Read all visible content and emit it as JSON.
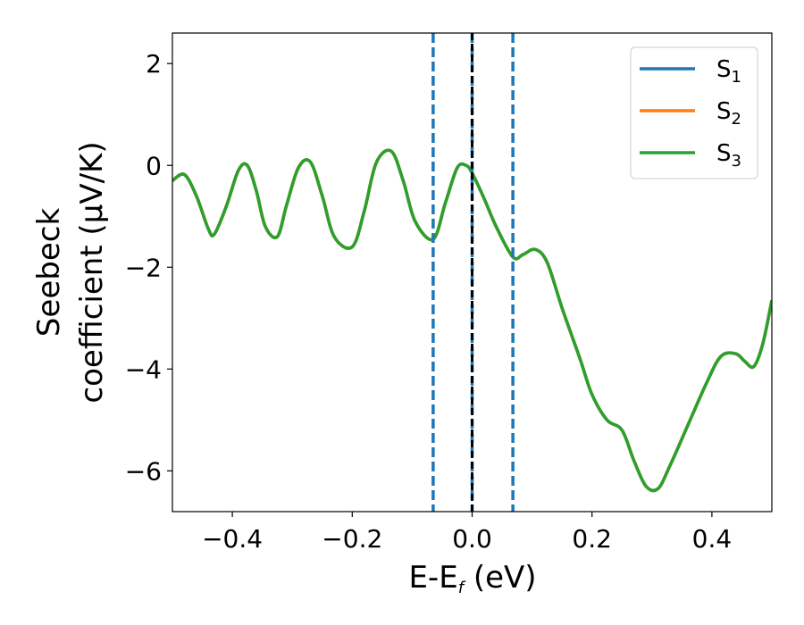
{
  "chart_data": {
    "type": "line",
    "xlabel": "E-E_f (eV)",
    "xlabel_main": "E-E",
    "xlabel_sub": "f",
    "xlabel_unit": " (eV)",
    "ylabel_line1": "Seebeck",
    "ylabel_line2": "coefficient  (μV/K)",
    "xlim": [
      -0.5,
      0.5
    ],
    "ylim": [
      -6.8,
      2.6
    ],
    "xticks": [
      -0.4,
      -0.2,
      0.0,
      0.2,
      0.4
    ],
    "xtick_labels": [
      "−0.4",
      "−0.2",
      "0.0",
      "0.2",
      "0.4"
    ],
    "yticks": [
      2,
      0,
      -2,
      -4,
      -6
    ],
    "ytick_labels": [
      "2",
      "0",
      "−2",
      "−4",
      "−6"
    ],
    "grid": false,
    "legend_position": "top-right",
    "vlines": [
      {
        "x": -0.065,
        "style": "dashed",
        "color": "#1f77b4"
      },
      {
        "x": 0.0,
        "style": "dashed",
        "color": "#1f77b4"
      },
      {
        "x": 0.0,
        "style": "solid",
        "color": "#000000"
      },
      {
        "x": 0.068,
        "style": "dashed",
        "color": "#1f77b4"
      }
    ],
    "x": [
      -0.5,
      -0.48,
      -0.46,
      -0.44,
      -0.43,
      -0.41,
      -0.39,
      -0.375,
      -0.36,
      -0.345,
      -0.325,
      -0.31,
      -0.29,
      -0.27,
      -0.25,
      -0.23,
      -0.2,
      -0.18,
      -0.16,
      -0.135,
      -0.115,
      -0.095,
      -0.065,
      -0.045,
      -0.025,
      -0.01,
      0.0,
      0.02,
      0.04,
      0.068,
      0.085,
      0.105,
      0.125,
      0.15,
      0.18,
      0.2,
      0.225,
      0.25,
      0.27,
      0.29,
      0.31,
      0.33,
      0.36,
      0.39,
      0.415,
      0.44,
      0.455,
      0.47,
      0.485,
      0.5
    ],
    "series": [
      {
        "name": "S_1",
        "label": "S",
        "sub": "1",
        "color": "#1f77b4",
        "values": [
          -0.3,
          -0.18,
          -0.6,
          -1.25,
          -1.35,
          -0.8,
          -0.1,
          0.0,
          -0.5,
          -1.2,
          -1.4,
          -0.8,
          -0.05,
          0.07,
          -0.6,
          -1.4,
          -1.6,
          -0.9,
          0.05,
          0.28,
          -0.3,
          -1.1,
          -1.45,
          -0.75,
          -0.05,
          0.0,
          -0.15,
          -0.65,
          -1.2,
          -1.8,
          -1.75,
          -1.65,
          -1.9,
          -2.8,
          -3.8,
          -4.5,
          -5.0,
          -5.2,
          -5.8,
          -6.3,
          -6.35,
          -5.9,
          -5.1,
          -4.3,
          -3.75,
          -3.7,
          -3.85,
          -3.95,
          -3.5,
          -2.65
        ]
      },
      {
        "name": "S_2",
        "label": "S",
        "sub": "2",
        "color": "#ff7f0e",
        "values": [
          -0.3,
          -0.18,
          -0.6,
          -1.25,
          -1.35,
          -0.8,
          -0.1,
          0.0,
          -0.5,
          -1.2,
          -1.4,
          -0.8,
          -0.05,
          0.07,
          -0.6,
          -1.4,
          -1.6,
          -0.9,
          0.05,
          0.28,
          -0.3,
          -1.1,
          -1.45,
          -0.75,
          -0.05,
          0.0,
          -0.15,
          -0.65,
          -1.2,
          -1.8,
          -1.75,
          -1.65,
          -1.9,
          -2.8,
          -3.8,
          -4.5,
          -5.0,
          -5.2,
          -5.8,
          -6.3,
          -6.35,
          -5.9,
          -5.1,
          -4.3,
          -3.75,
          -3.7,
          -3.85,
          -3.95,
          -3.5,
          -2.65
        ]
      },
      {
        "name": "S_3",
        "label": "S",
        "sub": "3",
        "color": "#2ca02c",
        "values": [
          -0.3,
          -0.18,
          -0.6,
          -1.25,
          -1.35,
          -0.8,
          -0.1,
          0.0,
          -0.5,
          -1.2,
          -1.4,
          -0.8,
          -0.05,
          0.07,
          -0.6,
          -1.4,
          -1.6,
          -0.9,
          0.05,
          0.28,
          -0.3,
          -1.1,
          -1.45,
          -0.75,
          -0.05,
          0.0,
          -0.15,
          -0.65,
          -1.2,
          -1.8,
          -1.75,
          -1.65,
          -1.9,
          -2.8,
          -3.8,
          -4.5,
          -5.0,
          -5.2,
          -5.8,
          -6.3,
          -6.35,
          -5.9,
          -5.1,
          -4.3,
          -3.75,
          -3.7,
          -3.85,
          -3.95,
          -3.5,
          -2.65
        ]
      }
    ]
  }
}
